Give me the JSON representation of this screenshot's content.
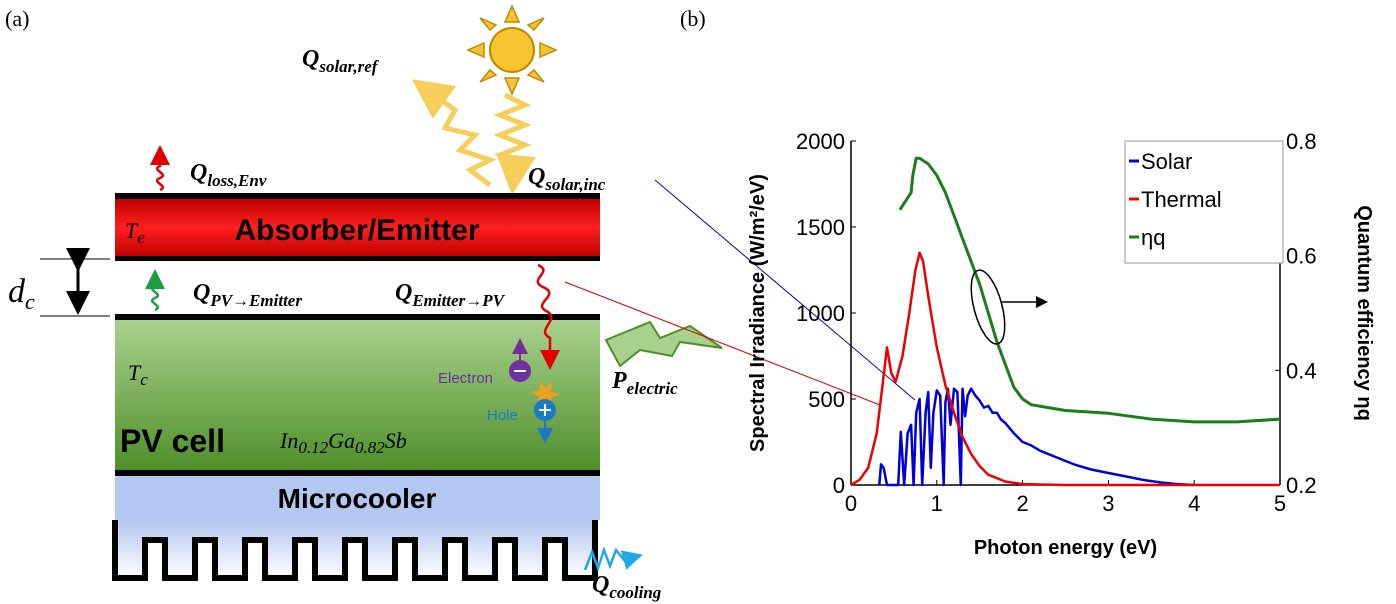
{
  "panel_a": {
    "label": "(a)",
    "q_solar_ref": {
      "symbol": "Q",
      "subscript": "solar,ref"
    },
    "q_solar_inc": {
      "symbol": "Q",
      "subscript": "solar,inc"
    },
    "q_loss_env": {
      "symbol": "Q",
      "subscript": "loss,Env"
    },
    "absorber": "Absorber/Emitter",
    "t_e": {
      "symbol": "T",
      "subscript": "e"
    },
    "d_c": {
      "symbol": "d",
      "subscript": "c"
    },
    "q_pv_emitter": {
      "symbol": "Q",
      "subscript": "PV→Emitter"
    },
    "q_emitter_pv": {
      "symbol": "Q",
      "subscript": "Emitter→PV"
    },
    "t_c": {
      "symbol": "T",
      "subscript": "c"
    },
    "electron": "Electron",
    "hole": "Hole",
    "p_electric": {
      "symbol": "P",
      "subscript": "electric"
    },
    "pv_cell": "PV cell",
    "material": [
      {
        "text": "In",
        "sub": "0.12"
      },
      {
        "text": "Ga",
        "sub": "0.82"
      },
      {
        "text": "Sb"
      }
    ],
    "microcooler": "Microcooler",
    "q_cooling": {
      "symbol": "Q",
      "subscript": "cooling"
    }
  },
  "chart_data": {
    "type": "line",
    "panel_label": "(b)",
    "xlabel": "Photon energy (eV)",
    "ylabel": "Spectral Irradiance (W/m²/eV)",
    "y2label": "Quantum efficiency ηq",
    "xlim": [
      0,
      5
    ],
    "xticks": [
      0,
      1,
      2,
      3,
      4,
      5
    ],
    "ylim": [
      0,
      2000
    ],
    "yticks": [
      0,
      500,
      1000,
      1500,
      2000
    ],
    "y2lim": [
      0.2,
      0.8
    ],
    "y2ticks": [
      0.2,
      0.4,
      0.6,
      0.8
    ],
    "legend": "upper right",
    "series": [
      {
        "name": "Solar",
        "color": "#0000dd",
        "x": [
          0.33,
          0.35,
          0.38,
          0.42,
          0.5,
          0.55,
          0.58,
          0.62,
          0.66,
          0.7,
          0.73,
          0.76,
          0.8,
          0.83,
          0.87,
          0.9,
          0.93,
          0.96,
          1.0,
          1.04,
          1.08,
          1.1,
          1.13,
          1.16,
          1.2,
          1.24,
          1.28,
          1.3,
          1.33,
          1.36,
          1.4,
          1.45,
          1.5,
          1.55,
          1.6,
          1.65,
          1.7,
          1.75,
          1.8,
          1.9,
          2.0,
          2.1,
          2.2,
          2.4,
          2.6,
          2.8,
          3.0,
          3.2,
          3.4,
          3.6,
          3.8,
          4.0
        ],
        "values": [
          0,
          120,
          100,
          0,
          0,
          0,
          310,
          0,
          300,
          350,
          0,
          420,
          500,
          0,
          420,
          540,
          100,
          420,
          550,
          520,
          0,
          480,
          560,
          350,
          560,
          540,
          0,
          560,
          400,
          520,
          560,
          520,
          490,
          450,
          460,
          420,
          420,
          380,
          360,
          300,
          250,
          230,
          200,
          160,
          120,
          90,
          70,
          50,
          30,
          15,
          5,
          0
        ]
      },
      {
        "name": "Thermal",
        "color": "#ee0000",
        "x": [
          0,
          0.1,
          0.2,
          0.3,
          0.36,
          0.42,
          0.47,
          0.52,
          0.6,
          0.68,
          0.75,
          0.8,
          0.84,
          0.9,
          1.0,
          1.1,
          1.2,
          1.3,
          1.4,
          1.5,
          1.6,
          1.8,
          2.0,
          2.5,
          3,
          4,
          5
        ],
        "values": [
          0,
          30,
          100,
          300,
          550,
          800,
          650,
          600,
          750,
          1000,
          1250,
          1350,
          1300,
          1100,
          800,
          580,
          420,
          280,
          180,
          110,
          60,
          20,
          5,
          0,
          0,
          0,
          0
        ]
      },
      {
        "name": "ηq",
        "color": "#1a7f1a",
        "axis": "y2",
        "x": [
          0.57,
          0.7,
          0.72,
          0.76,
          0.8,
          0.9,
          1.0,
          1.1,
          1.2,
          1.3,
          1.4,
          1.5,
          1.6,
          1.7,
          1.8,
          1.9,
          2.0,
          2.1,
          2.3,
          2.5,
          3.0,
          3.5,
          4.0,
          4.5,
          5.0
        ],
        "values": [
          0.68,
          0.71,
          0.74,
          0.77,
          0.77,
          0.76,
          0.74,
          0.71,
          0.67,
          0.63,
          0.59,
          0.55,
          0.5,
          0.45,
          0.41,
          0.37,
          0.35,
          0.34,
          0.335,
          0.33,
          0.325,
          0.315,
          0.31,
          0.31,
          0.315
        ]
      }
    ]
  }
}
